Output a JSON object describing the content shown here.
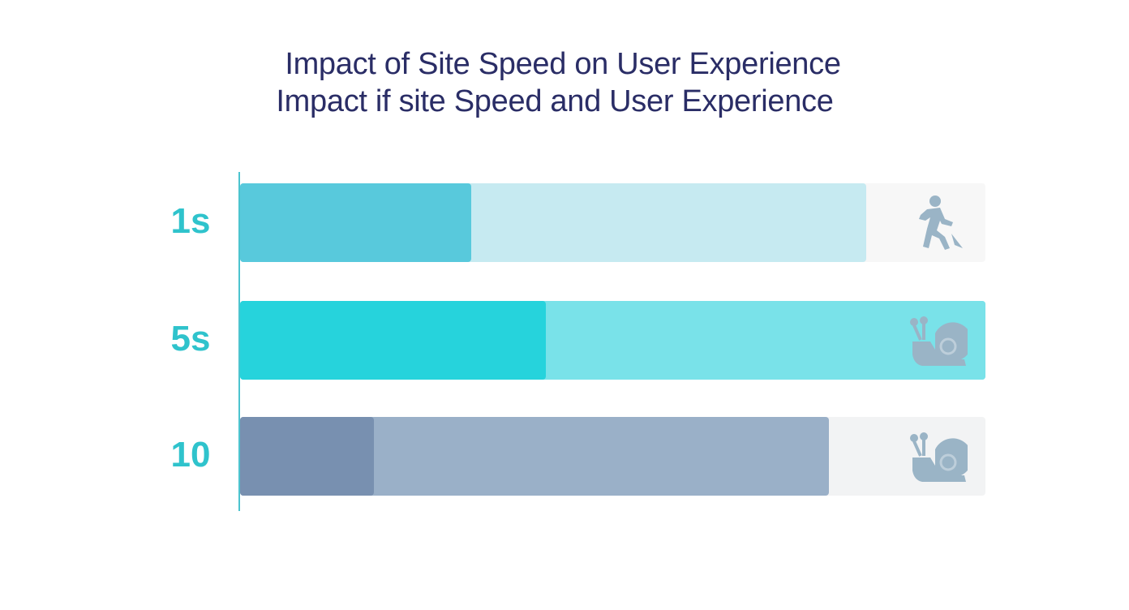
{
  "chart_data": {
    "type": "bar",
    "orientation": "horizontal",
    "stacked": true,
    "title": "Impact of Site Speed on User Experience",
    "subtitle": "Impact if site Speed and User Experience",
    "categories": [
      "1s",
      "5s",
      "10"
    ],
    "series": [
      {
        "values": [
          0.31,
          0.41,
          0.18
        ]
      },
      {
        "values": [
          0.53,
          0.59,
          0.61
        ]
      }
    ],
    "xlim": [
      0,
      1
    ],
    "grid": false,
    "legend": "none",
    "colors": {
      "row_dark": [
        "#58c9dc",
        "#26d3dc",
        "#7890b0"
      ],
      "row_light": [
        "#c6eaf1",
        "#79e2e9",
        "#9ab0c8"
      ],
      "track": [
        "#f7f7f7",
        "#79e2e9",
        "#f2f3f4"
      ],
      "icon": "#9ab4c6",
      "title": "#2a2d66",
      "label": "#2fc3cc"
    },
    "icons": [
      "running-person-icon",
      "snail-icon",
      "snail-icon"
    ]
  }
}
